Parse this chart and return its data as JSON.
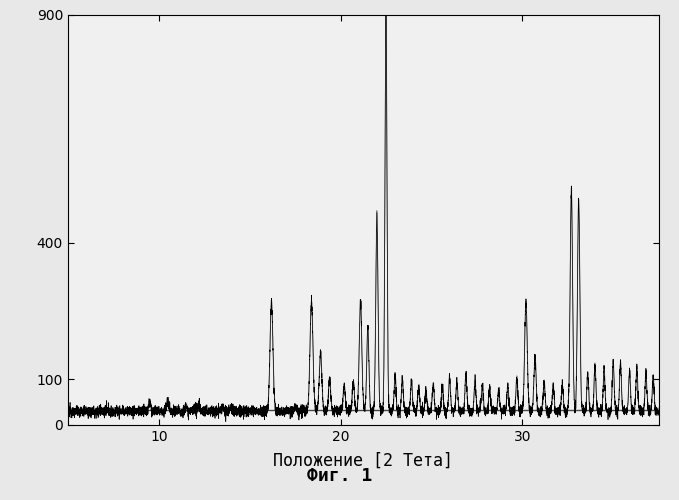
{
  "title": "",
  "xlabel": "Положение [2 Тета]",
  "fig_label": "Фиг. 1",
  "ylabel": "",
  "xlim": [
    5.0,
    37.5
  ],
  "ylim": [
    0,
    900
  ],
  "yticks": [
    0,
    100,
    400,
    900
  ],
  "xticks": [
    10,
    20,
    30
  ],
  "baseline": 30,
  "background_color": "#e8e8e8",
  "plot_bg_color": "#f0f0f0",
  "line_color": "#000000",
  "line_color2": "#888888",
  "xlabel_fontsize": 12,
  "figlabel_fontsize": 13,
  "tick_fontsize": 10
}
